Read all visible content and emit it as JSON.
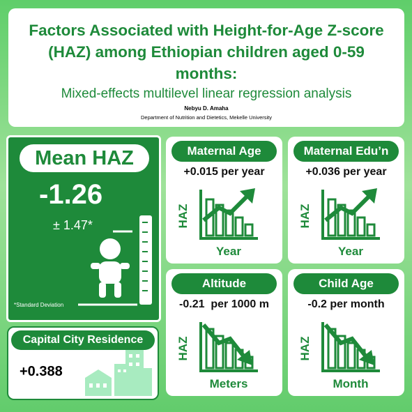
{
  "header": {
    "title": "Factors Associated with Height-for-Age Z-score (HAZ) among Ethiopian children aged 0-59 months:",
    "subtitle": "Mixed-effects multilevel linear regression analysis",
    "author": "Nebyu D. Amaha",
    "affiliation": "Department of Nutrition and Dietetics, Mekelle University"
  },
  "mean_haz": {
    "label": "Mean HAZ",
    "value": "-1.26",
    "sd": "± 1.47*",
    "note": "*Standard Deviation"
  },
  "capital": {
    "label": "Capital City Residence",
    "value": "+0.388"
  },
  "cards": [
    {
      "title": "Maternal Age",
      "value": "+0.015 per year",
      "y_label": "HAZ",
      "x_label": "Year"
    },
    {
      "title": "Maternal Edu’n",
      "value": "+0.036 per year",
      "y_label": "HAZ",
      "x_label": "Year"
    },
    {
      "title": "Altitude",
      "value": "-0.21  per 1000 m",
      "y_label": "HAZ",
      "x_label": "Meters"
    },
    {
      "title": "Child Age",
      "value": "-0.2 per month",
      "y_label": "HAZ",
      "x_label": "Month"
    }
  ]
}
